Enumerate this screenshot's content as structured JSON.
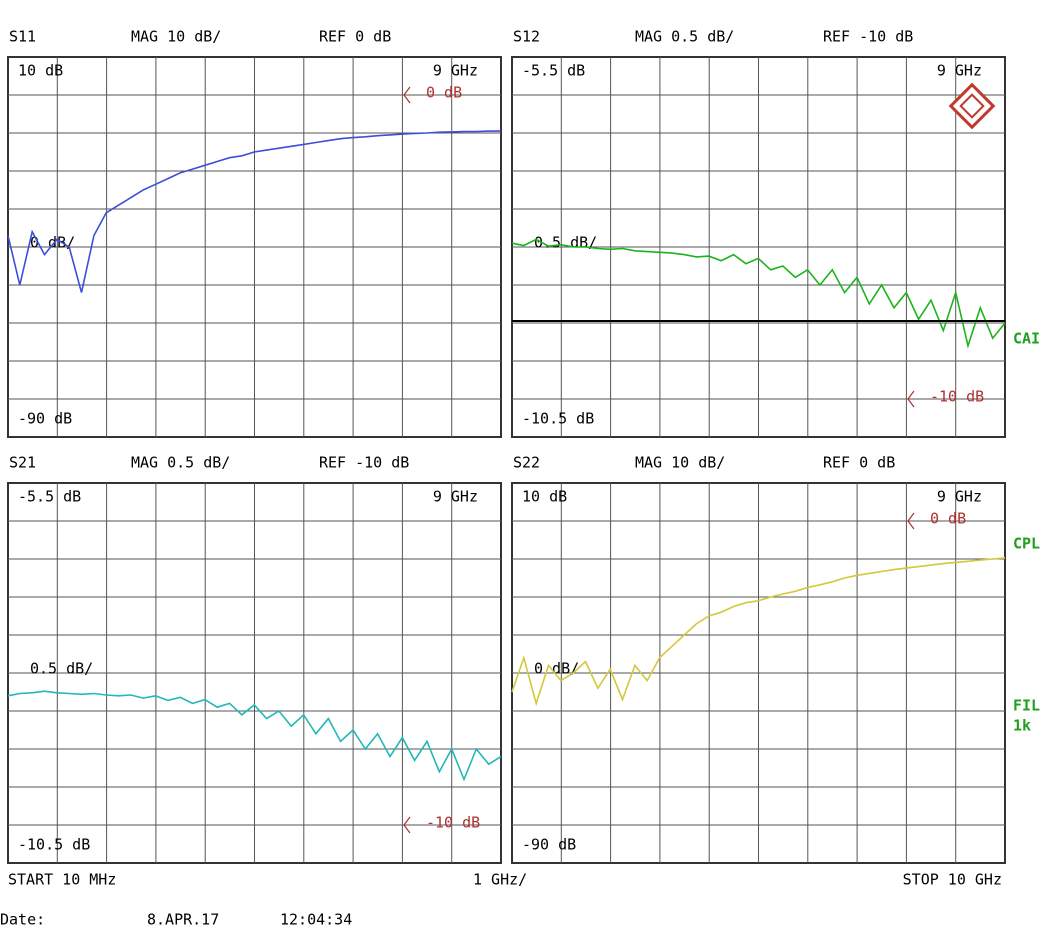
{
  "chart_data": [
    {
      "type": "line",
      "title": "S11",
      "scale": "MAG 10 dB/",
      "reference": "REF 0 dB",
      "center_label": "0 dB/",
      "corner_label": "9 GHz",
      "ylim": [
        -90,
        10
      ],
      "yticks": [
        {
          "value": 10,
          "label": "10 dB"
        },
        {
          "value": -90,
          "label": "-90 dB"
        }
      ],
      "ref_marker": {
        "value": 0,
        "label": "0 dB"
      },
      "xlim": [
        0.01,
        10
      ],
      "color": "#3b4fd8",
      "x": [
        0.01,
        0.25,
        0.5,
        0.75,
        1,
        1.25,
        1.5,
        1.75,
        2,
        2.25,
        2.5,
        2.75,
        3,
        3.25,
        3.5,
        3.75,
        4,
        4.25,
        4.5,
        4.75,
        5,
        5.25,
        5.5,
        5.75,
        6,
        6.25,
        6.5,
        6.75,
        7,
        7.25,
        7.5,
        7.75,
        8,
        8.25,
        8.5,
        8.75,
        9,
        9.25,
        9.5,
        9.75,
        10
      ],
      "values": [
        -37,
        -50,
        -36,
        -42,
        -38,
        -40,
        -52,
        -37,
        -31,
        -29,
        -27,
        -25,
        -23.5,
        -22,
        -20.5,
        -19.5,
        -18.5,
        -17.5,
        -16.5,
        -16,
        -15,
        -14.5,
        -14,
        -13.5,
        -13,
        -12.5,
        -12,
        -11.5,
        -11.2,
        -11,
        -10.7,
        -10.5,
        -10.3,
        -10.1,
        -10,
        -9.8,
        -9.7,
        -9.6,
        -9.6,
        -9.5,
        -9.5
      ]
    },
    {
      "type": "line",
      "title": "S12",
      "scale": "MAG 0.5 dB/",
      "reference": "REF -10 dB",
      "center_label": "0.5 dB/",
      "corner_label": "9 GHz",
      "ylim": [
        -10.5,
        -5.5
      ],
      "yticks": [
        {
          "value": -5.5,
          "label": "-5.5 dB"
        },
        {
          "value": -10.5,
          "label": "-10.5 dB"
        }
      ],
      "ref_marker": {
        "value": -10,
        "label": "-10 dB"
      },
      "xlim": [
        0.01,
        10
      ],
      "color": "#1cb31c",
      "x": [
        0.01,
        0.25,
        0.5,
        0.75,
        1,
        1.25,
        1.5,
        1.75,
        2,
        2.25,
        2.5,
        2.75,
        3,
        3.25,
        3.5,
        3.75,
        4,
        4.25,
        4.5,
        4.75,
        5,
        5.25,
        5.5,
        5.75,
        6,
        6.25,
        6.5,
        6.75,
        7,
        7.25,
        7.5,
        7.75,
        8,
        8.25,
        8.5,
        8.75,
        9,
        9.25,
        9.5,
        9.75,
        10
      ],
      "values": [
        -7.95,
        -7.98,
        -7.9,
        -7.99,
        -7.97,
        -8,
        -8,
        -8.02,
        -8.03,
        -8.02,
        -8.05,
        -8.06,
        -8.07,
        -8.08,
        -8.1,
        -8.13,
        -8.12,
        -8.18,
        -8.1,
        -8.22,
        -8.15,
        -8.3,
        -8.25,
        -8.4,
        -8.3,
        -8.5,
        -8.3,
        -8.6,
        -8.4,
        -8.75,
        -8.5,
        -8.8,
        -8.6,
        -8.95,
        -8.7,
        -9.1,
        -8.6,
        -9.3,
        -8.8,
        -9.2,
        -9
      ]
    },
    {
      "type": "line",
      "title": "S21",
      "scale": "MAG 0.5 dB/",
      "reference": "REF -10 dB",
      "center_label": "0.5 dB/",
      "corner_label": "9 GHz",
      "ylim": [
        -10.5,
        -5.5
      ],
      "yticks": [
        {
          "value": -5.5,
          "label": "-5.5 dB"
        },
        {
          "value": -10.5,
          "label": "-10.5 dB"
        }
      ],
      "ref_marker": {
        "value": -10,
        "label": "-10 dB"
      },
      "xlim": [
        0.01,
        10
      ],
      "color": "#20b8b8",
      "x": [
        0.01,
        0.25,
        0.5,
        0.75,
        1,
        1.25,
        1.5,
        1.75,
        2,
        2.25,
        2.5,
        2.75,
        3,
        3.25,
        3.5,
        3.75,
        4,
        4.25,
        4.5,
        4.75,
        5,
        5.25,
        5.5,
        5.75,
        6,
        6.25,
        6.5,
        6.75,
        7,
        7.25,
        7.5,
        7.75,
        8,
        8.25,
        8.5,
        8.75,
        9,
        9.25,
        9.5,
        9.75,
        10
      ],
      "values": [
        -8.3,
        -8.27,
        -8.26,
        -8.24,
        -8.26,
        -8.27,
        -8.28,
        -8.27,
        -8.29,
        -8.3,
        -8.29,
        -8.33,
        -8.3,
        -8.36,
        -8.32,
        -8.4,
        -8.35,
        -8.45,
        -8.4,
        -8.55,
        -8.42,
        -8.6,
        -8.5,
        -8.7,
        -8.55,
        -8.8,
        -8.6,
        -8.9,
        -8.75,
        -9,
        -8.8,
        -9.1,
        -8.85,
        -9.15,
        -8.9,
        -9.3,
        -9,
        -9.4,
        -9,
        -9.2,
        -9.1
      ]
    },
    {
      "type": "line",
      "title": "S22",
      "scale": "MAG 10 dB/",
      "reference": "REF 0 dB",
      "center_label": "0 dB/",
      "corner_label": "9 GHz",
      "ylim": [
        -90,
        10
      ],
      "yticks": [
        {
          "value": 10,
          "label": "10 dB"
        },
        {
          "value": -90,
          "label": "-90 dB"
        }
      ],
      "ref_marker": {
        "value": 0,
        "label": "0 dB"
      },
      "xlim": [
        0.01,
        10
      ],
      "color": "#d4c83a",
      "x": [
        0.01,
        0.25,
        0.5,
        0.75,
        1,
        1.25,
        1.5,
        1.75,
        2,
        2.25,
        2.5,
        2.75,
        3,
        3.25,
        3.5,
        3.75,
        4,
        4.25,
        4.5,
        4.75,
        5,
        5.25,
        5.5,
        5.75,
        6,
        6.25,
        6.5,
        6.75,
        7,
        7.25,
        7.5,
        7.75,
        8,
        8.25,
        8.5,
        8.75,
        9,
        9.25,
        9.5,
        9.75,
        10
      ],
      "values": [
        -45,
        -36,
        -48,
        -38,
        -42,
        -40,
        -37,
        -44,
        -39,
        -47,
        -38,
        -42,
        -36,
        -33,
        -30,
        -27,
        -25,
        -24,
        -22.5,
        -21.5,
        -21,
        -20,
        -19.2,
        -18.5,
        -17.5,
        -16.8,
        -16,
        -15,
        -14.3,
        -13.8,
        -13.3,
        -12.8,
        -12.4,
        -12,
        -11.6,
        -11.2,
        -10.9,
        -10.6,
        -10.3,
        -10,
        -9.7
      ]
    }
  ],
  "footer": {
    "start": "START 10 MHz",
    "span": "1 GHz/",
    "stop": "STOP 10 GHz",
    "date_label": "Date:",
    "date": "8.APR.17",
    "time": "12:04:34"
  },
  "side_labels": [
    "CAI",
    "CPL",
    "FIL",
    "1k"
  ]
}
